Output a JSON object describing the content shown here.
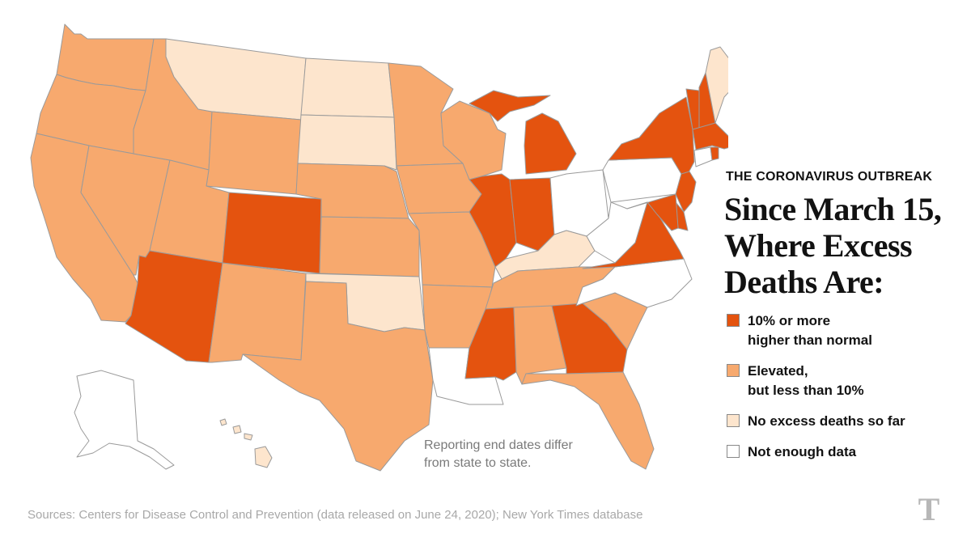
{
  "colors": {
    "high": "#e4530f",
    "elevated": "#f7a96e",
    "none": "#fde5cd",
    "no_data": "#ffffff",
    "border": "#9a9a9a"
  },
  "kicker": "THE CORONAVIRUS OUTBREAK",
  "headline": {
    "line1": "Since March 15,",
    "line2": "Where Excess",
    "line3": "Deaths Are:"
  },
  "legend": [
    {
      "key": "high",
      "line1": "10% or more",
      "line2": "higher than normal"
    },
    {
      "key": "elevated",
      "line1": "Elevated,",
      "line2": "but less than 10%"
    },
    {
      "key": "none",
      "line1": "No excess deaths so far",
      "line2": ""
    },
    {
      "key": "no_data",
      "line1": "Not enough data",
      "line2": ""
    }
  ],
  "note": {
    "line1": "Reporting end dates differ",
    "line2": "from state to state."
  },
  "sources": "Sources: Centers for Disease Control and Prevention (data released on June 24, 2020); New York Times database",
  "logo": "T",
  "states": {
    "WA": "elevated",
    "OR": "elevated",
    "CA": "elevated",
    "NV": "elevated",
    "ID": "elevated",
    "MT": "none",
    "WY": "elevated",
    "UT": "elevated",
    "AZ": "high",
    "CO": "high",
    "NM": "elevated",
    "ND": "none",
    "SD": "none",
    "NE": "elevated",
    "KS": "elevated",
    "OK": "none",
    "TX": "elevated",
    "MN": "elevated",
    "IA": "elevated",
    "MO": "elevated",
    "AR": "elevated",
    "LA": "no_data",
    "WI": "elevated",
    "IL": "high",
    "MI": "high",
    "IN": "high",
    "OH": "no_data",
    "KY": "none",
    "TN": "elevated",
    "MS": "high",
    "AL": "elevated",
    "GA": "high",
    "FL": "elevated",
    "SC": "elevated",
    "NC": "no_data",
    "VA": "high",
    "WV": "no_data",
    "PA": "no_data",
    "NY": "high",
    "VT": "high",
    "NH": "high",
    "ME": "none",
    "MA": "high",
    "CT": "no_data",
    "RI": "high",
    "NJ": "high",
    "DE": "high",
    "MD": "high",
    "AK": "no_data",
    "HI": "none"
  }
}
